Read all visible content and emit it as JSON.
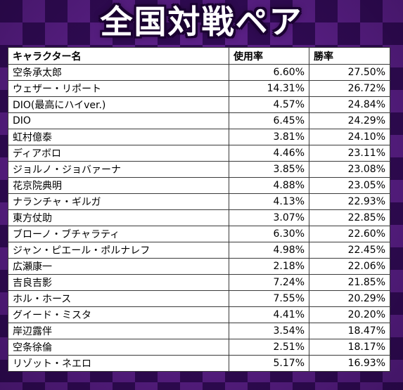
{
  "title": "全国対戦ペア",
  "table": {
    "headers": [
      "キャラクター名",
      "使用率",
      "勝率"
    ],
    "rows": [
      [
        "空条承太郎",
        "6.60%",
        "27.50%"
      ],
      [
        "ウェザー・リポート",
        "14.31%",
        "26.72%"
      ],
      [
        "DIO(最高にハイver.)",
        "4.57%",
        "24.84%"
      ],
      [
        "DIO",
        "6.45%",
        "24.29%"
      ],
      [
        "虹村億泰",
        "3.81%",
        "24.10%"
      ],
      [
        "ディアボロ",
        "4.46%",
        "23.11%"
      ],
      [
        "ジョルノ・ジョバァーナ",
        "3.85%",
        "23.08%"
      ],
      [
        "花京院典明",
        "4.88%",
        "23.05%"
      ],
      [
        "ナランチャ・ギルガ",
        "4.13%",
        "22.93%"
      ],
      [
        "東方仗助",
        "3.07%",
        "22.85%"
      ],
      [
        "ブローノ・ブチャラティ",
        "6.30%",
        "22.60%"
      ],
      [
        "ジャン・ピエール・ポルナレフ",
        "4.98%",
        "22.45%"
      ],
      [
        "広瀬康一",
        "2.18%",
        "22.06%"
      ],
      [
        "吉良吉影",
        "7.24%",
        "21.85%"
      ],
      [
        "ホル・ホース",
        "7.55%",
        "20.29%"
      ],
      [
        "グイード・ミスタ",
        "4.41%",
        "20.20%"
      ],
      [
        "岸辺露伴",
        "3.54%",
        "18.47%"
      ],
      [
        "空条徐倫",
        "2.51%",
        "18.17%"
      ],
      [
        "リゾット・ネエロ",
        "5.17%",
        "16.93%"
      ]
    ]
  }
}
